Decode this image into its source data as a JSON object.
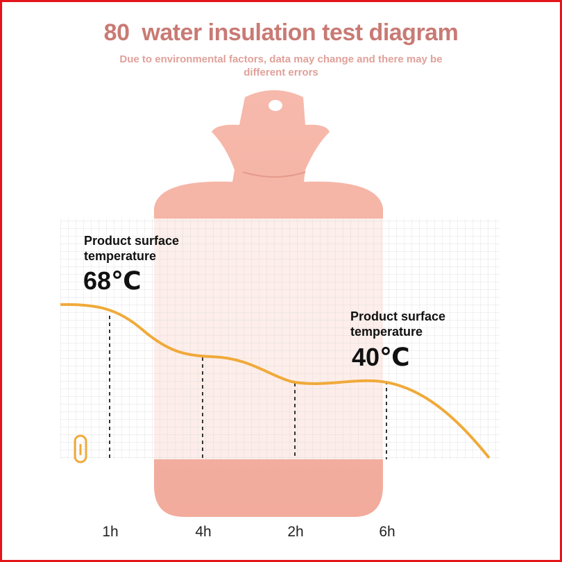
{
  "header": {
    "title": "80  water insulation test diagram",
    "subtitle": "Due to environmental factors, data may change and there may be different errors"
  },
  "annotations": [
    {
      "label": "Product surface temperature",
      "value": "68℃"
    },
    {
      "label": "Product surface temperature",
      "value": "40℃"
    }
  ],
  "time_labels": [
    "1h",
    "4h",
    "2h",
    "6h"
  ]
}
